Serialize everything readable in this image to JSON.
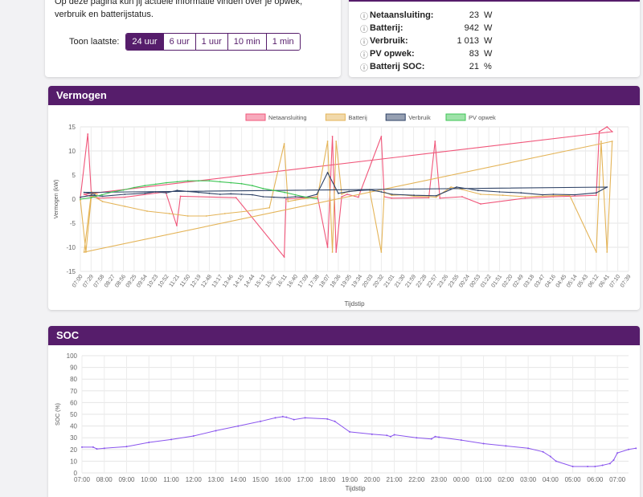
{
  "intro": {
    "text": "Op deze pagina kun jij actuele informatie vinden over je opwek, verbruik en batterijstatus.",
    "range_label": "Toon laatste:",
    "ranges": [
      "24 uur",
      "6 uur",
      "1 uur",
      "10 min",
      "1 min"
    ],
    "active_range": "24 uur"
  },
  "status": {
    "rows": [
      {
        "label": "Netaansluiting:",
        "value": "23",
        "unit": "W"
      },
      {
        "label": "Batterij:",
        "value": "942",
        "unit": "W"
      },
      {
        "label": "Verbruik:",
        "value": "1 013",
        "unit": "W"
      },
      {
        "label": "PV opwek:",
        "value": "83",
        "unit": "W"
      },
      {
        "label": "Batterij SOC:",
        "value": "21",
        "unit": "%"
      }
    ]
  },
  "power": {
    "title": "Vermogen"
  },
  "soc": {
    "title": "SOC"
  },
  "colors": {
    "brand": "#561d6b",
    "net": "#f0567a",
    "battery": "#e4b458",
    "consumption": "#2e4266",
    "pv": "#3dc554",
    "soc": "#8a55ee"
  },
  "chart_data": [
    {
      "type": "line",
      "xlabel": "Tijdstip",
      "ylabel": "Vermogen (kW)",
      "ylim": [
        -15,
        15
      ],
      "yticks": [
        15,
        10,
        5,
        0,
        -5,
        -10,
        -15
      ],
      "grid": true,
      "legend_position": "top",
      "x_ticks": [
        "07:00",
        "07:29",
        "07:58",
        "08:27",
        "08:56",
        "09:25",
        "09:54",
        "10:23",
        "10:52",
        "11:21",
        "11:50",
        "12:19",
        "12:48",
        "13:17",
        "13:46",
        "14:15",
        "14:44",
        "15:13",
        "15:42",
        "16:11",
        "16:40",
        "17:09",
        "17:38",
        "18:07",
        "18:36",
        "19:05",
        "19:34",
        "20:03",
        "20:32",
        "21:01",
        "21:30",
        "21:59",
        "22:28",
        "22:57",
        "23:26",
        "23:55",
        "00:24",
        "00:53",
        "01:22",
        "01:51",
        "02:20",
        "02:49",
        "03:18",
        "03:47",
        "04:16",
        "04:45",
        "05:14",
        "05:43",
        "06:12",
        "06:41",
        "07:10",
        "07:39"
      ],
      "series": [
        {
          "name": "Netaansluiting",
          "x": [
            "07:00",
            "07:20",
            "07:30",
            "07:50",
            "09:00",
            "10:50",
            "11:20",
            "11:30",
            "14:00",
            "16:10",
            "16:15",
            "17:40",
            "18:07",
            "18:20",
            "18:30",
            "18:45",
            "19:00",
            "19:30",
            "20:32",
            "20:40",
            "21:00",
            "22:40",
            "22:57",
            "23:10",
            "00:10",
            "01:00",
            "03:00",
            "04:16",
            "05:00",
            "06:12",
            "06:20",
            "06:41",
            "06:55",
            "07:10",
            "07:30",
            "07:45"
          ],
          "values": [
            0.3,
            13.5,
            0.5,
            0.2,
            0.4,
            1.5,
            -5.5,
            0.6,
            0.3,
            -12,
            0,
            0.5,
            -10,
            13,
            -11,
            0.5,
            1,
            0.4,
            13,
            0.5,
            0.2,
            0.3,
            12,
            0.2,
            0.5,
            -1,
            0.2,
            0.5,
            0.6,
            0.8,
            14,
            15,
            14,
            1,
            0.5,
            0.3
          ]
        },
        {
          "name": "Batterij",
          "x": [
            "07:00",
            "07:15",
            "07:30",
            "08:00",
            "09:00",
            "10:00",
            "11:00",
            "11:50",
            "12:40",
            "13:30",
            "14:30",
            "15:30",
            "16:10",
            "16:20",
            "16:40",
            "17:40",
            "18:07",
            "18:20",
            "18:30",
            "18:45",
            "19:00",
            "19:30",
            "20:00",
            "20:32",
            "20:40",
            "21:00",
            "21:30",
            "22:00",
            "22:40",
            "23:00",
            "23:40",
            "00:10",
            "01:00",
            "02:00",
            "03:00",
            "04:16",
            "05:00",
            "06:12",
            "06:25",
            "06:41",
            "06:55",
            "07:10",
            "07:30",
            "07:45"
          ],
          "values": [
            -0.2,
            -11,
            0.8,
            -0.5,
            -1.5,
            -2.5,
            -3,
            -3.5,
            -3.5,
            -3,
            -2.5,
            -1.8,
            11.5,
            -0.5,
            -0.2,
            0.5,
            12,
            -11,
            12,
            1,
            1.5,
            1.8,
            2,
            -11,
            1.5,
            0.8,
            0.9,
            0.6,
            0.5,
            0.4,
            2.5,
            2,
            1,
            0.8,
            0.5,
            0.7,
            0.8,
            -11,
            12,
            -11,
            12,
            -11,
            1.5,
            1
          ]
        },
        {
          "name": "Verbruik",
          "x": [
            "07:00",
            "07:30",
            "08:00",
            "09:00",
            "09:54",
            "10:23",
            "10:52",
            "11:21",
            "11:50",
            "12:19",
            "12:48",
            "13:17",
            "13:46",
            "14:15",
            "14:44",
            "15:13",
            "15:42",
            "16:11",
            "16:40",
            "17:09",
            "17:38",
            "18:07",
            "18:36",
            "19:05",
            "19:34",
            "20:03",
            "20:32",
            "21:01",
            "22:00",
            "23:00",
            "23:55",
            "00:53",
            "01:51",
            "02:49",
            "03:47",
            "04:16",
            "05:14",
            "06:12",
            "06:41",
            "07:10",
            "07:39"
          ],
          "values": [
            0.4,
            0.8,
            0.6,
            1,
            1.2,
            1.5,
            1.3,
            1.8,
            1.6,
            1.4,
            1.2,
            1.0,
            1.1,
            1.0,
            0.9,
            0.5,
            0.4,
            0.3,
            0.5,
            0.4,
            1,
            5.5,
            1.2,
            1.6,
            1.8,
            1.9,
            1.5,
            1.0,
            0.8,
            0.7,
            2.5,
            1.8,
            1.5,
            1.3,
            0.9,
            1.0,
            0.9,
            1.3,
            2.5,
            1.4,
            1.0
          ]
        },
        {
          "name": "PV opwek",
          "x": [
            "07:00",
            "07:29",
            "07:58",
            "08:27",
            "08:56",
            "09:25",
            "09:54",
            "10:23",
            "10:52",
            "11:21",
            "11:50",
            "12:19",
            "12:48",
            "13:17",
            "13:46",
            "14:15",
            "14:44",
            "15:13",
            "15:42",
            "16:11",
            "16:40",
            "17:09",
            "17:38"
          ],
          "values": [
            0,
            0.3,
            0.9,
            1.5,
            1.9,
            2.4,
            2.8,
            3.1,
            3.4,
            3.6,
            3.8,
            3.8,
            3.8,
            3.6,
            3.4,
            3.2,
            2.8,
            2.2,
            1.8,
            1.4,
            0.9,
            0.4,
            0.1
          ]
        }
      ]
    },
    {
      "type": "line",
      "xlabel": "Tijdstip",
      "ylabel": "SOC (%)",
      "ylim": [
        0,
        100
      ],
      "yticks": [
        100,
        90,
        80,
        70,
        60,
        50,
        40,
        30,
        20,
        10,
        0
      ],
      "grid": true,
      "x_ticks": [
        "07:00",
        "08:00",
        "09:00",
        "10:00",
        "11:00",
        "12:00",
        "13:00",
        "14:00",
        "15:00",
        "16:00",
        "17:00",
        "18:00",
        "19:00",
        "20:00",
        "21:00",
        "22:00",
        "23:00",
        "00:00",
        "01:00",
        "02:00",
        "03:00",
        "04:00",
        "05:00",
        "06:00",
        "07:00"
      ],
      "series": [
        {
          "name": "SOC",
          "x": [
            "07:00",
            "07:30",
            "07:40",
            "08:00",
            "09:00",
            "10:00",
            "11:00",
            "12:00",
            "13:00",
            "14:00",
            "15:00",
            "15:40",
            "16:00",
            "16:10",
            "16:30",
            "17:00",
            "18:00",
            "18:20",
            "19:00",
            "20:00",
            "20:40",
            "20:50",
            "21:00",
            "22:00",
            "22:40",
            "22:50",
            "23:00",
            "24:00",
            "25:00",
            "26:00",
            "27:00",
            "27:40",
            "28:00",
            "28:15",
            "29:00",
            "29:40",
            "30:00",
            "30:20",
            "30:40",
            "30:50",
            "31:00",
            "31:30",
            "31:50"
          ],
          "values": [
            22,
            22,
            20.5,
            21,
            22.5,
            26,
            28.5,
            31.5,
            36,
            40,
            44,
            47,
            48,
            47.5,
            45.5,
            47,
            46,
            44,
            35,
            33,
            32,
            31,
            32.5,
            30,
            29,
            31,
            30.5,
            28,
            25,
            23,
            21,
            18,
            14,
            10,
            5.5,
            5.5,
            5.5,
            6.5,
            8,
            11,
            17,
            20,
            21
          ]
        }
      ]
    }
  ]
}
